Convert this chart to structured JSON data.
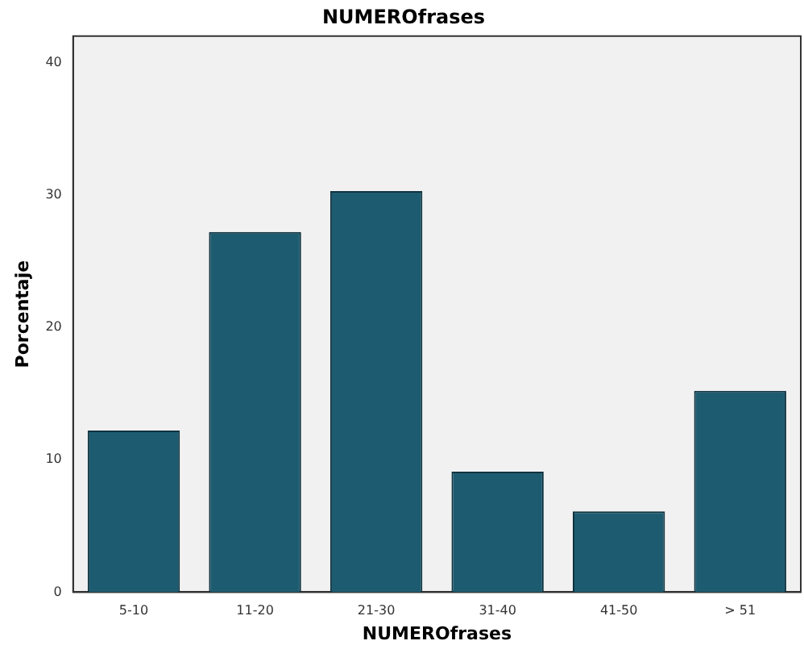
{
  "chart_data": {
    "type": "bar",
    "title": "NUMEROfrases",
    "xlabel": "NUMEROfrases",
    "ylabel": "Porcentaje",
    "categories": [
      "5-10",
      "11-20",
      "21-30",
      "31-40",
      "41-50",
      "> 51"
    ],
    "values": [
      12.2,
      27.2,
      30.3,
      9.1,
      6.1,
      15.2
    ],
    "color": "#1d5c70",
    "ylim": [
      0,
      42
    ],
    "yticks": [
      0,
      10,
      20,
      30,
      40
    ],
    "grid": false,
    "legend": false
  }
}
